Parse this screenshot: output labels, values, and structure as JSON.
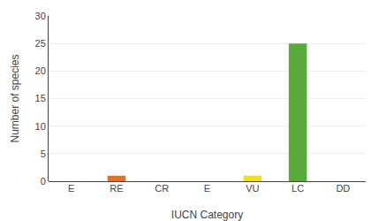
{
  "chart_data": {
    "type": "bar",
    "categories": [
      "E",
      "RE",
      "CR",
      "E",
      "VU",
      "LC",
      "DD"
    ],
    "values": [
      0,
      1,
      0,
      0,
      1,
      25,
      0
    ],
    "colors": [
      "#c0c0c0",
      "#e07030",
      "#c0c0c0",
      "#c0c0c0",
      "#ede020",
      "#5aaa3a",
      "#c0c0c0"
    ],
    "xlabel": "IUCN Category",
    "ylabel": "Number of species",
    "ylim": [
      0,
      30
    ],
    "yticks": [
      0,
      5,
      10,
      15,
      20,
      25,
      30
    ],
    "grid": true
  }
}
